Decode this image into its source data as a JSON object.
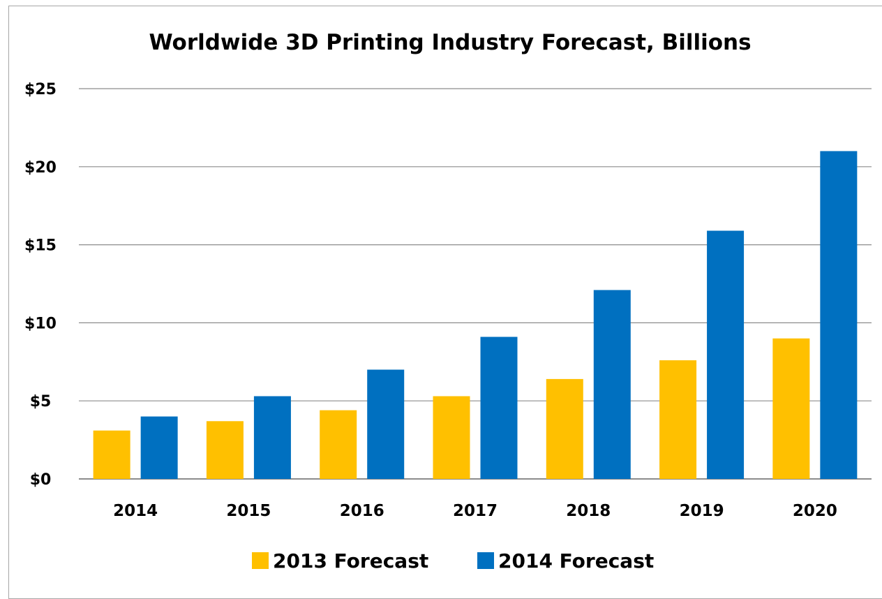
{
  "chart_data": {
    "type": "bar",
    "title": "Worldwide 3D Printing Industry Forecast, Billions",
    "xlabel": "",
    "ylabel": "",
    "categories": [
      "2014",
      "2015",
      "2016",
      "2017",
      "2018",
      "2019",
      "2020"
    ],
    "series": [
      {
        "name": "2013 Forecast",
        "color": "#FFC000",
        "values": [
          3.1,
          3.7,
          4.4,
          5.3,
          6.4,
          7.6,
          9.0
        ]
      },
      {
        "name": "2014 Forecast",
        "color": "#0070C0",
        "values": [
          4.0,
          5.3,
          7.0,
          9.1,
          12.1,
          15.9,
          21.0
        ]
      }
    ],
    "ylim": [
      0,
      25
    ],
    "yticks": [
      0,
      5,
      10,
      15,
      20,
      25
    ],
    "ytick_labels": [
      "$0",
      "$5",
      "$10",
      "$15",
      "$20",
      "$25"
    ],
    "grid": true,
    "legend_position": "bottom"
  }
}
